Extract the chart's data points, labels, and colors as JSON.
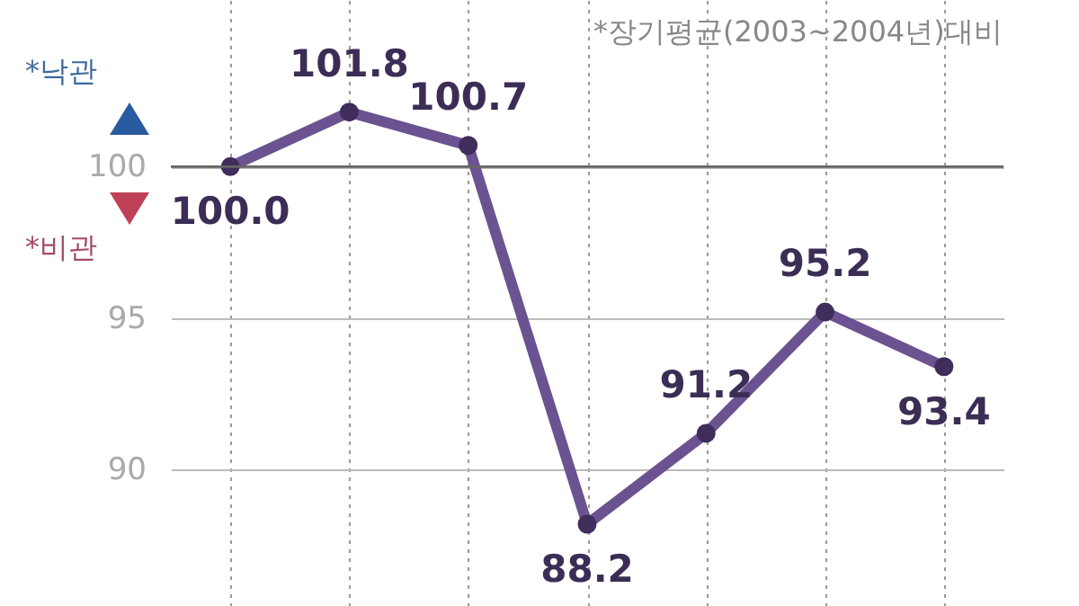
{
  "chart_data": {
    "type": "line",
    "categories": [
      null,
      null,
      null,
      null,
      null,
      null,
      null
    ],
    "series": [
      {
        "color": "#6b5290",
        "values": [
          100.0,
          101.8,
          100.7,
          88.2,
          91.2,
          95.2,
          93.4
        ],
        "value_labels": [
          "100.0",
          "101.8",
          "100.7",
          "88.2",
          "91.2",
          "95.2",
          "93.4"
        ]
      }
    ],
    "ylim": [
      85.5,
      105.5
    ],
    "yticks": [
      90,
      95,
      100
    ],
    "grid": true,
    "marker": "circle",
    "line_style": "solid",
    "tick_labels": "y",
    "ref_lines": [
      {
        "axis": "y",
        "value": 100,
        "color": "#666666"
      }
    ],
    "annotations": [
      "*장기평균(2003~2004년)대비",
      "*낙관",
      "*비관"
    ]
  }
}
